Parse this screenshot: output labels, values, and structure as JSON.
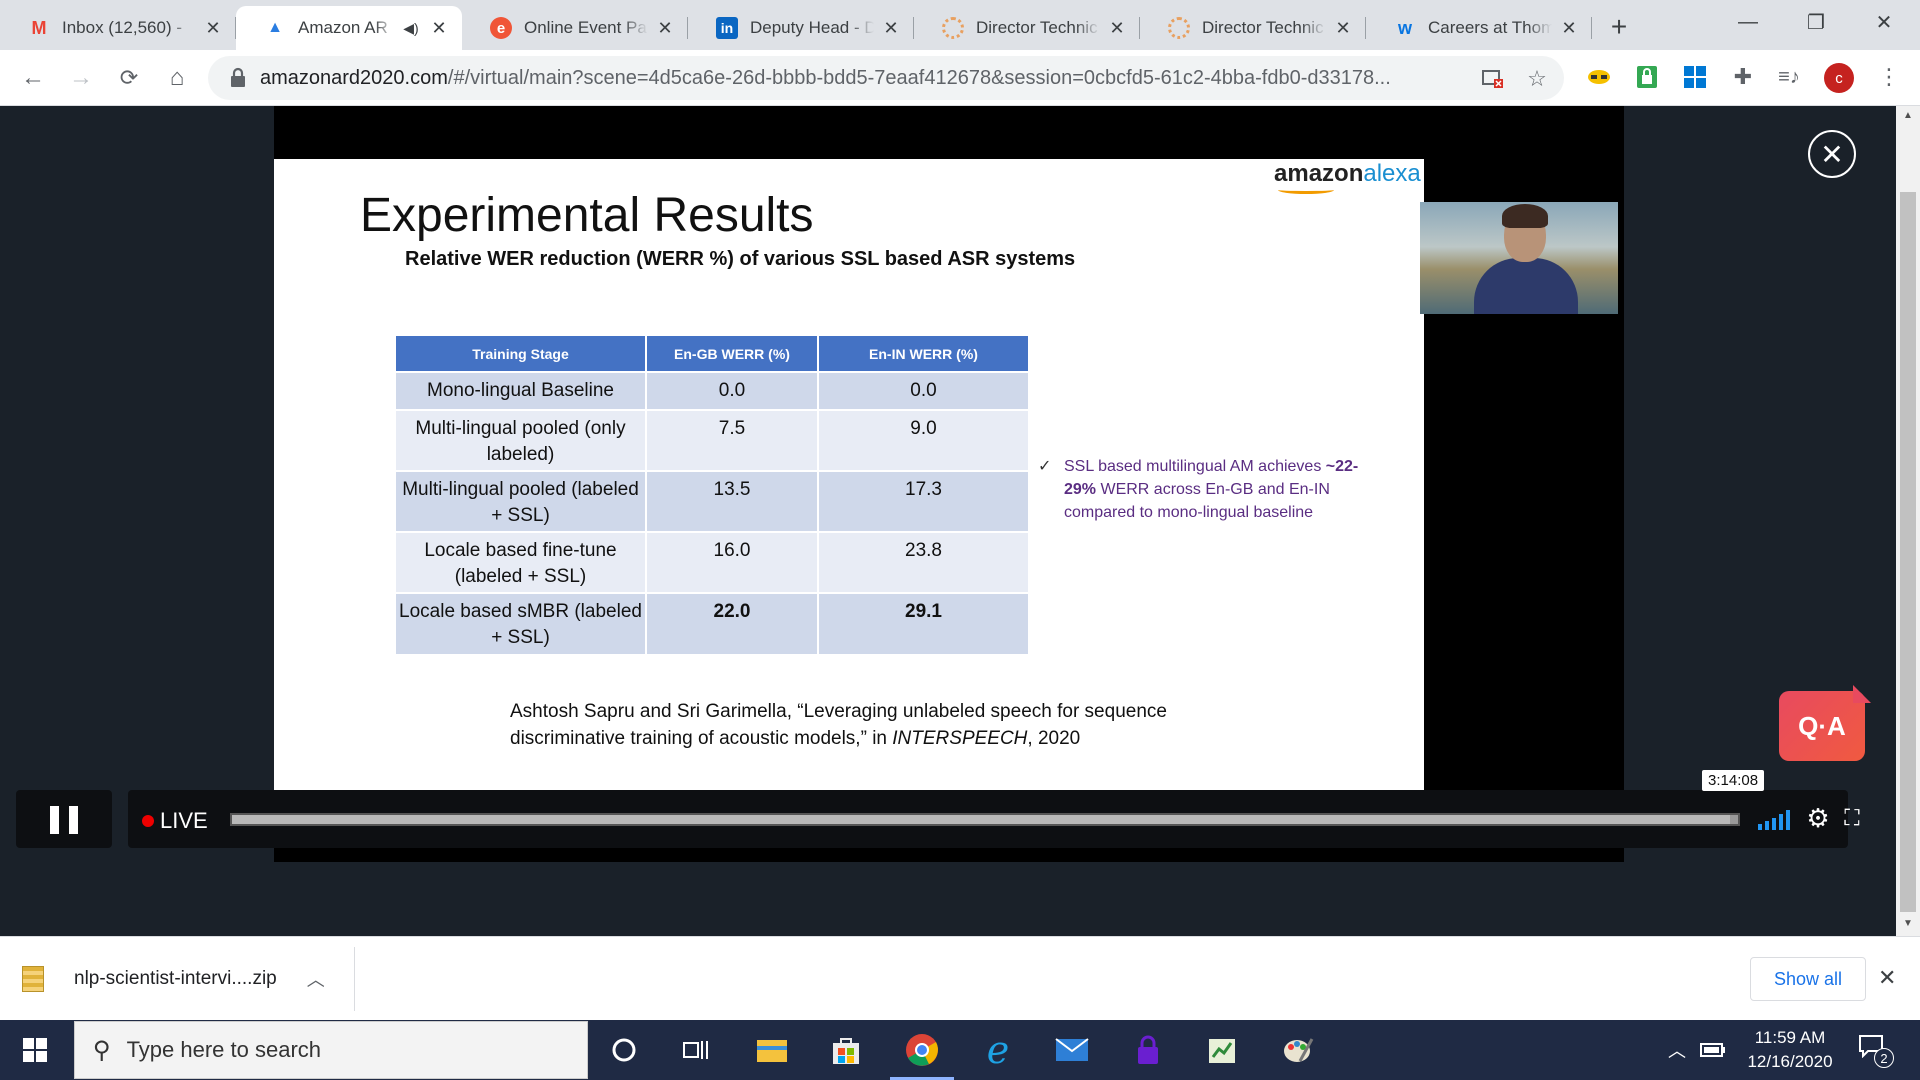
{
  "browser": {
    "tabs": [
      {
        "title": "Inbox (12,560) -",
        "icon": "gmail-icon",
        "active": false
      },
      {
        "title": "Amazon AR",
        "icon": "amazon-ar-icon",
        "active": true,
        "audio": true
      },
      {
        "title": "Online Event Pa",
        "icon": "eventbrite-icon",
        "active": false
      },
      {
        "title": "Deputy Head - D",
        "icon": "linkedin-icon",
        "active": false
      },
      {
        "title": "Director Technic",
        "icon": "spinner-icon",
        "active": false
      },
      {
        "title": "Director Technic",
        "icon": "spinner-icon",
        "active": false
      },
      {
        "title": "Careers at Thom",
        "icon": "workday-icon",
        "active": false
      }
    ],
    "new_tab": "+",
    "window_controls": {
      "minimize": "—",
      "restore": "❐",
      "close": "✕"
    },
    "toolbar": {
      "back": "←",
      "forward": "→",
      "reload": "C",
      "home": "⌂",
      "url_host": "amazonard2020.com",
      "url_rest": "/#/virtual/main?scene=4d5ca6e-26d-bbbb-bdd5-7eaaf412678&session=0cbcfd5-61c2-4bba-fdb0-d33178...",
      "profile_initial": "c"
    }
  },
  "player": {
    "logo_main": "amazon",
    "logo_accent": "alexa",
    "slide": {
      "title": "Experimental Results",
      "subtitle": "Relative WER reduction (WERR %) of various SSL based ASR systems",
      "table": {
        "headers": [
          "Training Stage",
          "En-GB WERR (%)",
          "En-IN WERR (%)"
        ],
        "rows": [
          {
            "stage": "Mono-lingual Baseline",
            "gb": "0.0",
            "in": "0.0"
          },
          {
            "stage": "Multi-lingual pooled (only labeled)",
            "gb": "7.5",
            "in": "9.0"
          },
          {
            "stage": "Multi-lingual pooled (labeled + SSL)",
            "gb": "13.5",
            "in": "17.3"
          },
          {
            "stage": "Locale based fine-tune (labeled + SSL)",
            "gb": "16.0",
            "in": "23.8"
          },
          {
            "stage": "Locale based sMBR (labeled + SSL)",
            "gb": "22.0",
            "in": "29.1"
          }
        ]
      },
      "note_check": "✓",
      "note_pre": "SSL based multilingual AM achieves ",
      "note_bold": "~22-29%",
      "note_post": " WERR across En-GB and En-IN compared to mono-lingual baseline",
      "citation_pre": "Ashtosh Sapru and Sri Garimella, “Leveraging unlabeled speech for sequence discriminative training of acoustic models,” in ",
      "citation_italic": "INTERSPEECH",
      "citation_post": ", 2020"
    },
    "close_label": "✕",
    "qa_label": "Q·A",
    "live_label": "LIVE",
    "time": "3:14:08",
    "progress": 0.995
  },
  "download_bar": {
    "file": "nlp-scientist-intervi....zip",
    "show_all": "Show all"
  },
  "taskbar": {
    "search_placeholder": "Type here to search",
    "time": "11:59 AM",
    "date": "12/16/2020",
    "notification_count": "2"
  },
  "colors": {
    "table_header": "#4472c4",
    "table_row_dark": "#cfd8ea",
    "table_row_light": "#e8ecf5",
    "note_text": "#5a2d82",
    "qa_button": "#ee5050",
    "live_dot": "#ee0000"
  }
}
